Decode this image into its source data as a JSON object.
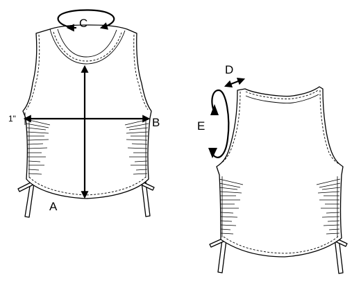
{
  "labels": {
    "a": "A",
    "b": "B",
    "c": "C",
    "d": "D",
    "e": "E",
    "inch": "1\""
  },
  "views": {
    "front": "front-view",
    "back": "back-view"
  }
}
